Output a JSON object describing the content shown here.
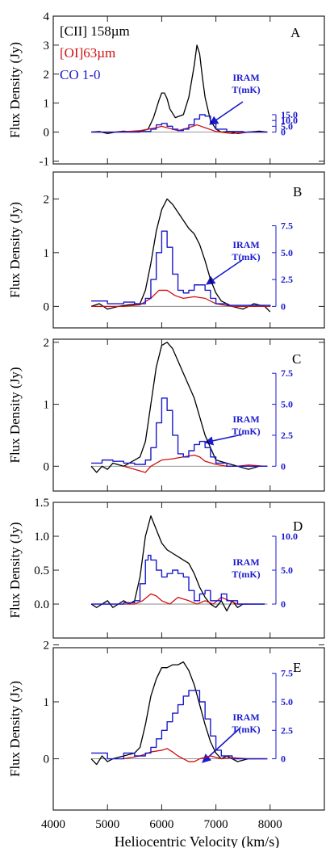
{
  "colors": {
    "cii": "#000000",
    "oi": "#d01010",
    "co": "#1a1acd",
    "arrow": "#1a1acd",
    "frame": "#222222",
    "zero": "#888888"
  },
  "legend": {
    "cii": "[CII] 158µm",
    "oi": "[OI]63µm",
    "co": "CO 1-0"
  },
  "iram_label": {
    "line1": "IRAM",
    "line2": "T(mK)"
  },
  "xaxis": {
    "label": "Heliocentric Velocity (km/s)",
    "range": [
      4000,
      9000
    ],
    "ticks": [
      4000,
      5000,
      6000,
      7000,
      8000
    ],
    "tick_labels": [
      "4000",
      "5000",
      "6000",
      "7000",
      "8000"
    ]
  },
  "chart_data": [
    {
      "type": "line",
      "panel": "A",
      "ylabel": "Flux Density (Jy)",
      "ylim": [
        -1.1,
        4.0
      ],
      "y_ticks": [
        -1,
        0,
        1,
        2,
        3,
        4
      ],
      "y_tick_labels": [
        "-1",
        "0",
        "1",
        "2",
        "3",
        "4"
      ],
      "right_axis": {
        "label_values": [
          "15.0",
          "10.0",
          "5.0",
          "0"
        ],
        "ticks_mK": [
          15,
          10,
          5,
          0
        ],
        "mK_per_Jy": 25
      },
      "series": [
        {
          "name": "[CII] 158µm",
          "color": "#000000",
          "x": [
            4700,
            4850,
            5000,
            5150,
            5300,
            5450,
            5600,
            5750,
            5850,
            5950,
            6000,
            6050,
            6100,
            6150,
            6250,
            6400,
            6500,
            6600,
            6650,
            6700,
            6750,
            6800,
            6900,
            7000,
            7100,
            7250,
            7400,
            7600,
            7800,
            7950
          ],
          "y": [
            0.0,
            0.02,
            -0.05,
            0.0,
            0.03,
            0.0,
            0.03,
            0.1,
            0.5,
            1.1,
            1.35,
            1.35,
            1.15,
            0.8,
            0.5,
            0.6,
            1.2,
            2.3,
            3.0,
            2.7,
            1.9,
            1.2,
            0.4,
            0.1,
            0.0,
            0.02,
            -0.05,
            0.0,
            0.03,
            0.0
          ]
        },
        {
          "name": "[OI]63µm",
          "color": "#d01010",
          "x": [
            4700,
            5200,
            5600,
            5900,
            6000,
            6100,
            6300,
            6500,
            6650,
            6800,
            7000,
            7300,
            7600,
            7950
          ],
          "y": [
            0.0,
            0.0,
            0.05,
            0.15,
            0.2,
            0.15,
            0.05,
            0.15,
            0.25,
            0.15,
            0.02,
            -0.05,
            0.0,
            0.0
          ]
        },
        {
          "name": "CO 1-0",
          "color": "#1a1acd",
          "step": true,
          "x": [
            4700,
            5200,
            5600,
            5800,
            5900,
            6000,
            6100,
            6200,
            6300,
            6400,
            6500,
            6600,
            6700,
            6800,
            6900,
            7000,
            7200,
            7500,
            7950
          ],
          "y": [
            0.0,
            0.0,
            0.02,
            0.1,
            0.25,
            0.3,
            0.2,
            0.1,
            0.05,
            0.1,
            0.25,
            0.45,
            0.6,
            0.55,
            0.3,
            0.1,
            0.02,
            0.0,
            0.0
          ]
        }
      ]
    },
    {
      "type": "line",
      "panel": "B",
      "ylabel": "Flux Density (Jy)",
      "ylim": [
        -0.4,
        2.5
      ],
      "y_ticks": [
        0,
        1,
        2
      ],
      "y_tick_labels": [
        "0",
        "1",
        "2"
      ],
      "right_axis": {
        "label_values": [
          "7.5",
          "5.0",
          "2.5",
          "0"
        ],
        "ticks_mK": [
          7.5,
          5,
          2.5,
          0
        ],
        "mK_per_Jy": 5
      },
      "series": [
        {
          "name": "[CII] 158µm",
          "color": "#000000",
          "x": [
            4700,
            4850,
            5000,
            5200,
            5400,
            5600,
            5700,
            5800,
            5900,
            6000,
            6100,
            6200,
            6300,
            6400,
            6500,
            6600,
            6700,
            6800,
            6900,
            7000,
            7100,
            7300,
            7500,
            7700,
            7900,
            8000
          ],
          "y": [
            0.0,
            0.05,
            -0.05,
            0.0,
            0.03,
            0.05,
            0.3,
            0.8,
            1.4,
            1.8,
            2.0,
            1.9,
            1.75,
            1.6,
            1.45,
            1.35,
            1.15,
            0.85,
            0.5,
            0.25,
            0.1,
            0.0,
            -0.05,
            0.05,
            0.0,
            -0.1
          ]
        },
        {
          "name": "[OI]63µm",
          "color": "#d01010",
          "x": [
            4700,
            5300,
            5600,
            5800,
            5950,
            6100,
            6250,
            6400,
            6600,
            6800,
            7000,
            7300,
            7700,
            8000
          ],
          "y": [
            0.0,
            0.0,
            0.03,
            0.15,
            0.3,
            0.3,
            0.2,
            0.15,
            0.18,
            0.15,
            0.05,
            0.0,
            0.0,
            0.0
          ]
        },
        {
          "name": "CO 1-0",
          "color": "#1a1acd",
          "step": true,
          "x": [
            4700,
            5000,
            5300,
            5500,
            5700,
            5800,
            5900,
            6000,
            6050,
            6100,
            6200,
            6300,
            6400,
            6500,
            6600,
            6700,
            6800,
            6900,
            7000,
            7200,
            7500,
            8000
          ],
          "y": [
            0.1,
            0.05,
            0.08,
            0.05,
            0.15,
            0.5,
            1.0,
            1.4,
            1.4,
            1.1,
            0.6,
            0.3,
            0.25,
            0.3,
            0.4,
            0.4,
            0.3,
            0.15,
            0.05,
            0.02,
            0.02,
            0.0
          ]
        }
      ]
    },
    {
      "type": "line",
      "panel": "C",
      "ylabel": "Flux Density (Jy)",
      "ylim": [
        -0.4,
        2.05
      ],
      "y_ticks": [
        0,
        1,
        2
      ],
      "y_tick_labels": [
        "0",
        "1",
        "2"
      ],
      "right_axis": {
        "label_values": [
          "7.5",
          "5.0",
          "2.5",
          "0"
        ],
        "ticks_mK": [
          7.5,
          5,
          2.5,
          0
        ],
        "mK_per_Jy": 5
      },
      "series": [
        {
          "name": "[CII] 158µm",
          "color": "#000000",
          "x": [
            4700,
            4800,
            4900,
            5000,
            5100,
            5300,
            5500,
            5600,
            5700,
            5800,
            5900,
            6000,
            6100,
            6200,
            6300,
            6400,
            6500,
            6600,
            6700,
            6800,
            6900,
            7000,
            7200,
            7400,
            7600,
            7800,
            7950
          ],
          "y": [
            0.0,
            -0.1,
            0.0,
            -0.05,
            0.05,
            0.0,
            0.1,
            0.15,
            0.4,
            1.0,
            1.6,
            1.95,
            2.0,
            1.9,
            1.7,
            1.5,
            1.3,
            1.1,
            0.8,
            0.5,
            0.3,
            0.1,
            0.05,
            0.0,
            -0.05,
            0.0,
            0.0
          ]
        },
        {
          "name": "[OI]63µm",
          "color": "#d01010",
          "x": [
            5300,
            5500,
            5700,
            5800,
            6000,
            6200,
            6400,
            6600,
            6700,
            6800,
            7000,
            7200,
            7400,
            7600,
            7900
          ],
          "y": [
            0.0,
            -0.05,
            -0.1,
            0.0,
            0.1,
            0.12,
            0.15,
            0.18,
            0.15,
            0.08,
            0.03,
            0.0,
            0.0,
            0.02,
            0.0
          ]
        },
        {
          "name": "CO 1-0",
          "color": "#1a1acd",
          "step": true,
          "x": [
            4700,
            4900,
            5100,
            5300,
            5500,
            5700,
            5800,
            5900,
            6000,
            6050,
            6100,
            6200,
            6300,
            6400,
            6500,
            6600,
            6700,
            6800,
            6900,
            7000,
            7200,
            7500,
            7950
          ],
          "y": [
            0.05,
            0.1,
            0.08,
            0.05,
            0.03,
            0.1,
            0.3,
            0.7,
            1.1,
            1.1,
            0.9,
            0.5,
            0.2,
            0.15,
            0.25,
            0.35,
            0.4,
            0.3,
            0.15,
            0.05,
            0.0,
            0.0,
            0.0
          ]
        }
      ]
    },
    {
      "type": "line",
      "panel": "D",
      "ylabel": "Flux Density (Jy)",
      "ylim": [
        -0.5,
        1.5
      ],
      "y_ticks": [
        0.0,
        0.5,
        1.0,
        1.5
      ],
      "y_tick_labels": [
        "0.0",
        "0.5",
        "1.0",
        "1.5"
      ],
      "right_axis": {
        "label_values": [
          "10.0",
          "5.0",
          "0"
        ],
        "ticks_mK": [
          10,
          5,
          0
        ],
        "mK_per_Jy": 10
      },
      "series": [
        {
          "name": "[CII] 158µm",
          "color": "#000000",
          "x": [
            4700,
            4800,
            4900,
            5000,
            5100,
            5200,
            5300,
            5400,
            5500,
            5600,
            5700,
            5800,
            5900,
            6000,
            6100,
            6200,
            6300,
            6400,
            6500,
            6600,
            6700,
            6800,
            6900,
            7000,
            7100,
            7200,
            7300,
            7400,
            7500,
            7700,
            7900
          ],
          "y": [
            0.0,
            -0.05,
            0.0,
            0.05,
            -0.05,
            0.0,
            0.05,
            0.0,
            0.05,
            0.4,
            1.0,
            1.3,
            1.1,
            0.9,
            0.8,
            0.75,
            0.7,
            0.65,
            0.6,
            0.45,
            0.25,
            0.1,
            0.0,
            -0.05,
            0.05,
            -0.1,
            0.05,
            -0.05,
            0.0,
            0.0,
            0.0
          ]
        },
        {
          "name": "[OI]63µm",
          "color": "#d01010",
          "x": [
            5300,
            5500,
            5650,
            5800,
            5900,
            6000,
            6150,
            6300,
            6500,
            6650,
            6800,
            6950,
            7100,
            7250,
            7400,
            7600
          ],
          "y": [
            0.0,
            0.0,
            0.05,
            0.15,
            0.12,
            0.05,
            0.0,
            0.1,
            0.05,
            0.0,
            0.05,
            0.0,
            0.1,
            0.05,
            0.0,
            0.0
          ]
        },
        {
          "name": "CO 1-0",
          "color": "#1a1acd",
          "step": true,
          "x": [
            4700,
            5000,
            5300,
            5500,
            5600,
            5700,
            5750,
            5800,
            5900,
            6000,
            6100,
            6200,
            6300,
            6400,
            6500,
            6600,
            6700,
            6800,
            6900,
            7000,
            7100,
            7200,
            7400,
            7600,
            7900
          ],
          "y": [
            0.0,
            0.0,
            0.02,
            0.05,
            0.3,
            0.65,
            0.72,
            0.65,
            0.5,
            0.4,
            0.45,
            0.5,
            0.45,
            0.4,
            0.2,
            0.05,
            0.15,
            0.2,
            0.05,
            0.05,
            0.15,
            0.05,
            0.0,
            0.0,
            0.0
          ]
        }
      ]
    },
    {
      "type": "line",
      "panel": "E",
      "ylabel": "Flux Density (Jy)",
      "ylim": [
        -0.9,
        1.95
      ],
      "y_ticks": [
        0,
        1,
        2
      ],
      "y_tick_labels": [
        "0",
        "1",
        "2"
      ],
      "right_axis": {
        "label_values": [
          "7.5",
          "5.0",
          "2.5",
          "0"
        ],
        "ticks_mK": [
          7.5,
          5,
          2.5,
          0
        ],
        "mK_per_Jy": 5
      },
      "series": [
        {
          "name": "[CII] 158µm",
          "color": "#000000",
          "x": [
            4700,
            4800,
            4900,
            5000,
            5100,
            5300,
            5500,
            5600,
            5700,
            5800,
            5900,
            6000,
            6100,
            6200,
            6300,
            6400,
            6500,
            6600,
            6700,
            6800,
            6900,
            7000,
            7100,
            7200,
            7400,
            7600,
            7800,
            7950
          ],
          "y": [
            0.0,
            -0.1,
            0.05,
            -0.05,
            0.0,
            0.05,
            0.1,
            0.2,
            0.6,
            1.1,
            1.4,
            1.6,
            1.6,
            1.65,
            1.65,
            1.7,
            1.55,
            1.3,
            0.95,
            0.6,
            0.3,
            0.1,
            0.0,
            0.05,
            -0.05,
            0.0,
            0.0,
            0.0
          ]
        },
        {
          "name": "[OI]63µm",
          "color": "#d01010",
          "x": [
            5300,
            5600,
            5800,
            6000,
            6100,
            6200,
            6300,
            6400,
            6500,
            6600,
            6700,
            6900,
            7100,
            7300,
            7600,
            7900
          ],
          "y": [
            0.0,
            0.05,
            0.12,
            0.15,
            0.18,
            0.12,
            0.05,
            0.0,
            -0.05,
            -0.05,
            0.0,
            0.05,
            0.0,
            0.02,
            0.0,
            0.0
          ]
        },
        {
          "name": "CO 1-0",
          "color": "#1a1acd",
          "step": true,
          "x": [
            4700,
            5000,
            5300,
            5500,
            5700,
            5800,
            5900,
            6000,
            6100,
            6200,
            6300,
            6400,
            6500,
            6600,
            6700,
            6800,
            6900,
            7000,
            7100,
            7300,
            7600,
            7950
          ],
          "y": [
            0.1,
            0.0,
            0.1,
            0.05,
            0.1,
            0.2,
            0.35,
            0.5,
            0.65,
            0.8,
            0.95,
            1.1,
            1.2,
            1.2,
            1.0,
            0.7,
            0.4,
            0.15,
            0.05,
            0.0,
            0.0,
            0.0
          ]
        }
      ]
    }
  ]
}
